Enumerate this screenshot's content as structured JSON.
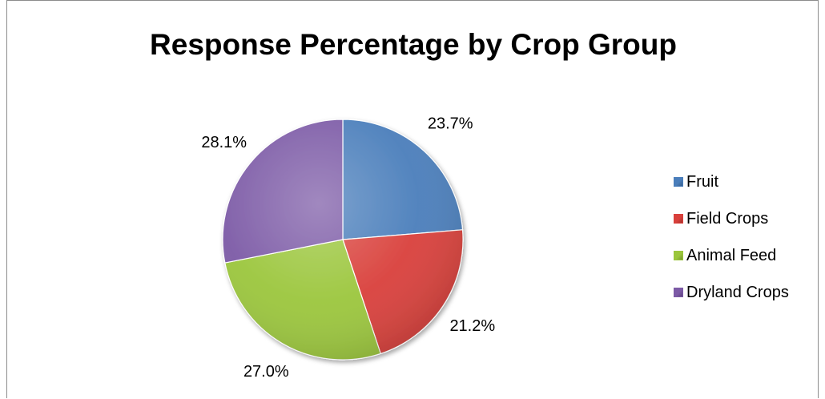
{
  "chart_data": {
    "type": "pie",
    "title": "Response Percentage by Crop Group",
    "categories": [
      "Fruit",
      "Field Crops",
      "Animal Feed",
      "Dryland Crops"
    ],
    "values": [
      23.7,
      21.2,
      27.0,
      28.1
    ],
    "labels": [
      "23.7%",
      "21.2%",
      "27.0%",
      "28.1%"
    ],
    "colors": [
      "#4a7ebb",
      "#d9403b",
      "#9bc63c",
      "#7c5aa6"
    ],
    "legend_position": "right",
    "start_angle": "top (12 o'clock)",
    "direction": "clockwise"
  }
}
